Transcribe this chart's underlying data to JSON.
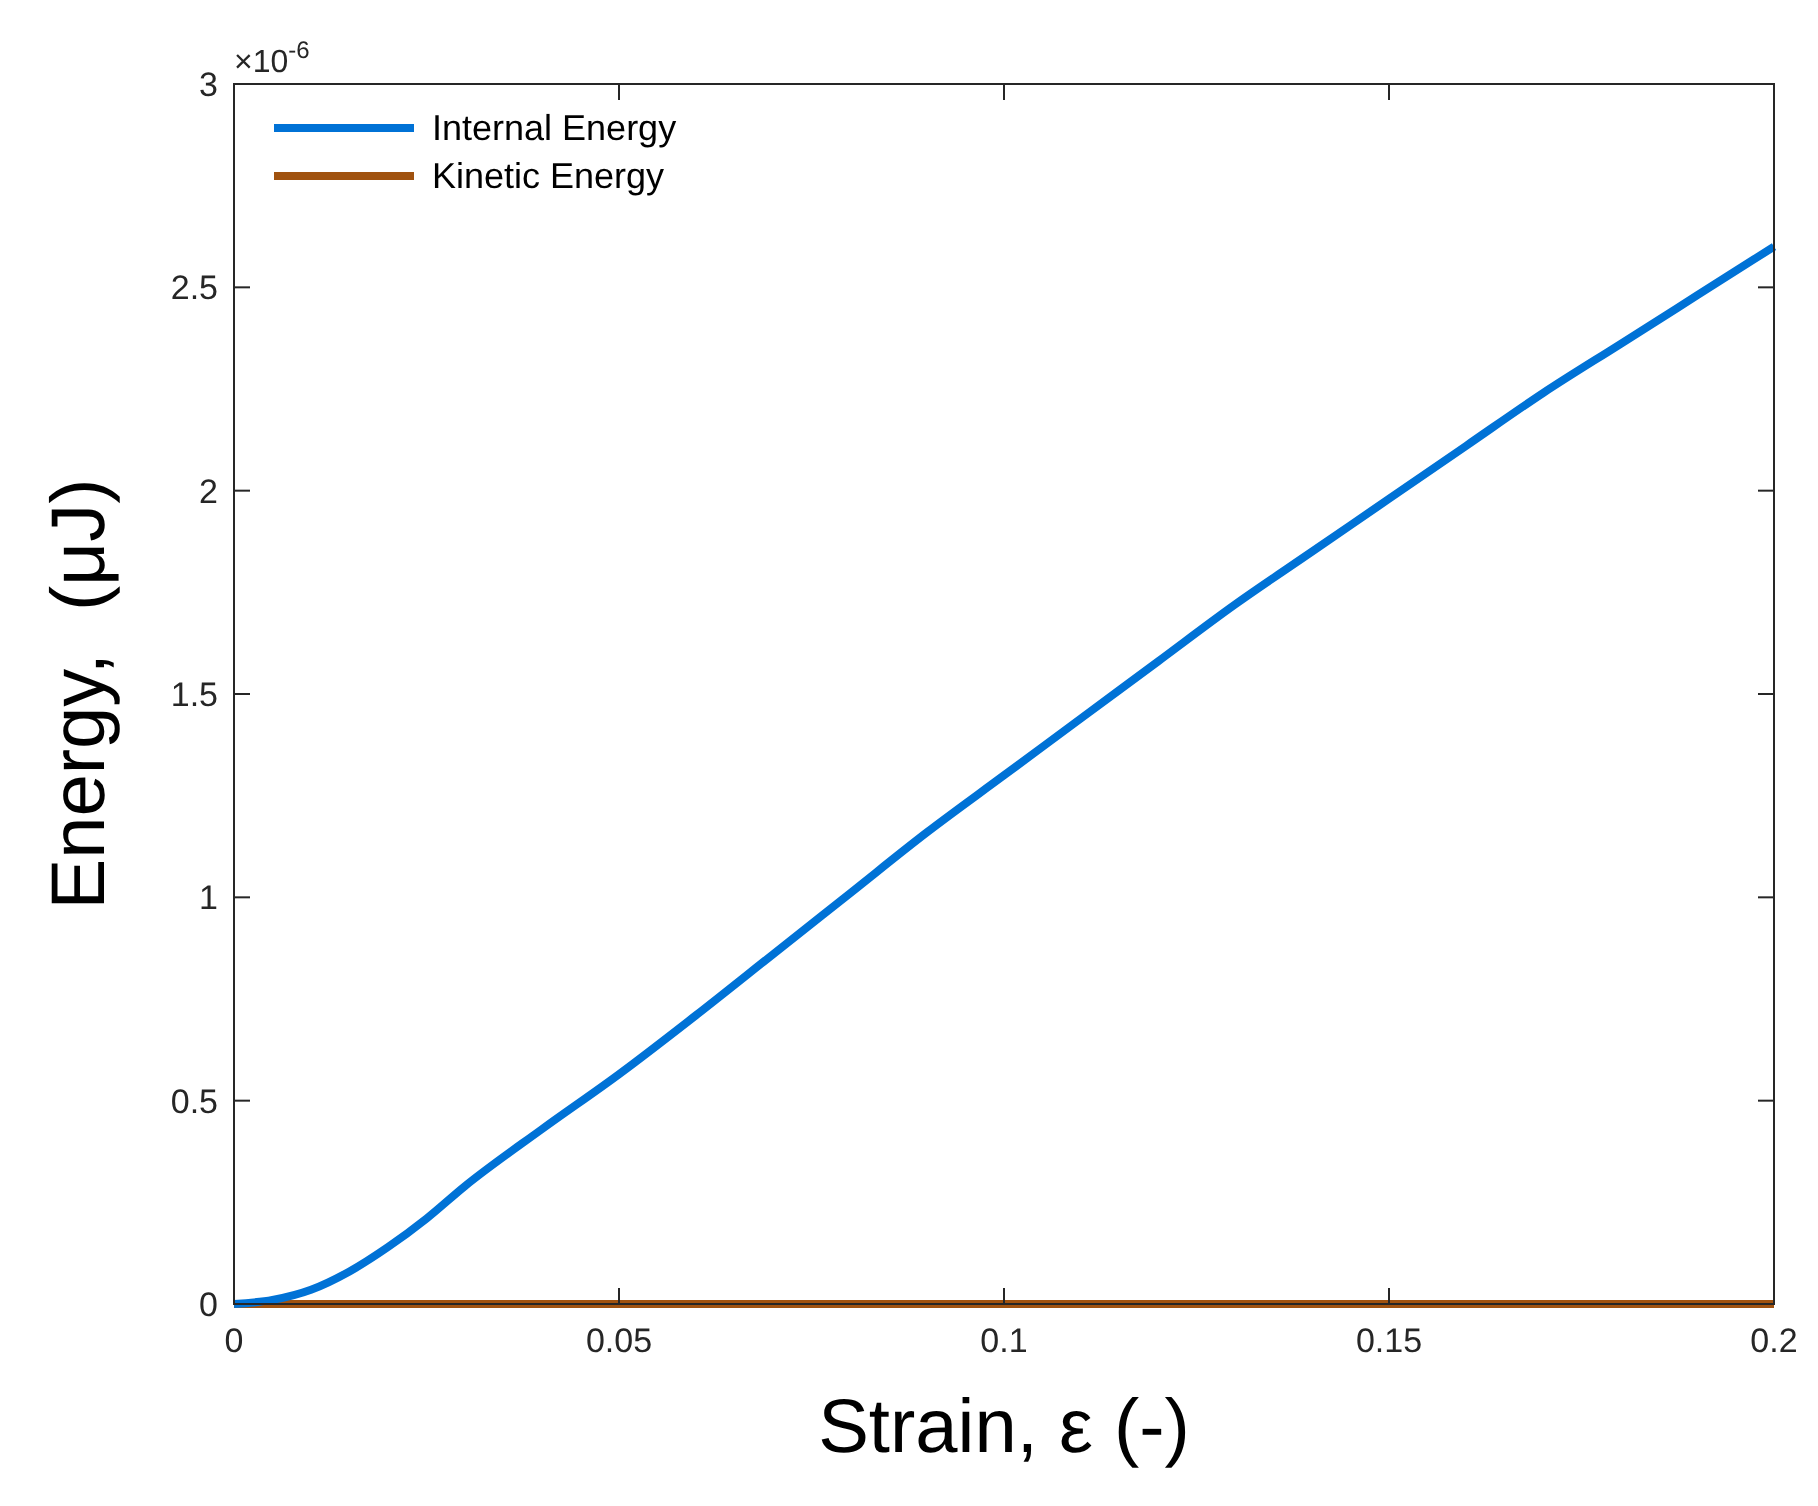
{
  "chart_data": {
    "type": "line",
    "xlabel": "Strain, ε (-)",
    "ylabel": "Energy,  (μJ)",
    "annotations": [
      "×10$^{-6}$"
    ],
    "xlim": [
      0,
      0.2
    ],
    "xticks": [
      0,
      0.05,
      0.1,
      0.15,
      0.2
    ],
    "ylim": [
      0,
      3
    ],
    "yticks": [
      0,
      0.5,
      1,
      1.5,
      2,
      2.5,
      3
    ],
    "legend": "top left",
    "grid": false,
    "line_style": "solid",
    "series": [
      {
        "name": "Internal Energy",
        "color": "#0072d6",
        "x": [
          0,
          0.005,
          0.01,
          0.015,
          0.02,
          0.025,
          0.03,
          0.04,
          0.05,
          0.06,
          0.07,
          0.08,
          0.09,
          0.1,
          0.11,
          0.12,
          0.13,
          0.14,
          0.15,
          0.16,
          0.17,
          0.18,
          0.19,
          0.2
        ],
        "values": [
          0,
          0.01,
          0.035,
          0.08,
          0.14,
          0.21,
          0.29,
          0.43,
          0.565,
          0.71,
          0.86,
          1.01,
          1.16,
          1.3,
          1.44,
          1.58,
          1.72,
          1.85,
          1.98,
          2.11,
          2.24,
          2.36,
          2.48,
          2.6
        ]
      },
      {
        "name": "Kinetic Energy",
        "color": "#a0520f",
        "x": [
          0,
          0.2
        ],
        "values": [
          0,
          0
        ]
      }
    ]
  }
}
